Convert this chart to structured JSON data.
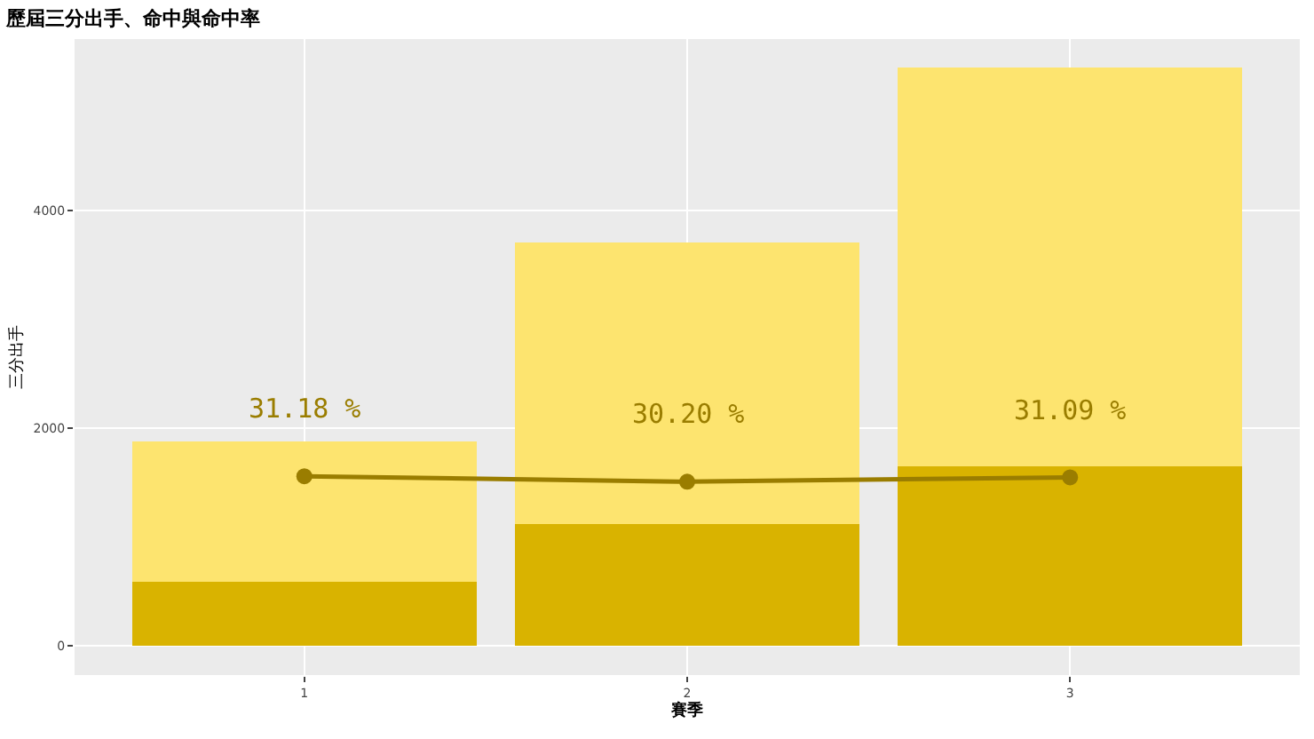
{
  "chart_data": {
    "type": "bar",
    "title": "歷屆三分出手、命中與命中率",
    "xlabel": "賽季",
    "ylabel": "三分出手",
    "categories": [
      "1",
      "2",
      "3"
    ],
    "stacked": true,
    "series": [
      {
        "color": "#d9b300",
        "values": [
          590,
          1120,
          1650
        ]
      },
      {
        "color": "#fde46f",
        "values": [
          1290,
          2590,
          3670
        ]
      },
      {
        "type": "line",
        "color": "#9a7d00",
        "values": [
          1560,
          1510,
          1550
        ],
        "marker": "circle"
      }
    ],
    "annotations": [
      {
        "text": "31.18 %",
        "x": "1",
        "y": 1560
      },
      {
        "text": "30.20 %",
        "x": "2",
        "y": 1510
      },
      {
        "text": "31.09 %",
        "x": "3",
        "y": 1550
      }
    ],
    "ylim": [
      -268,
      5580
    ],
    "yticks": [
      0,
      2000,
      4000
    ],
    "grid": true
  }
}
